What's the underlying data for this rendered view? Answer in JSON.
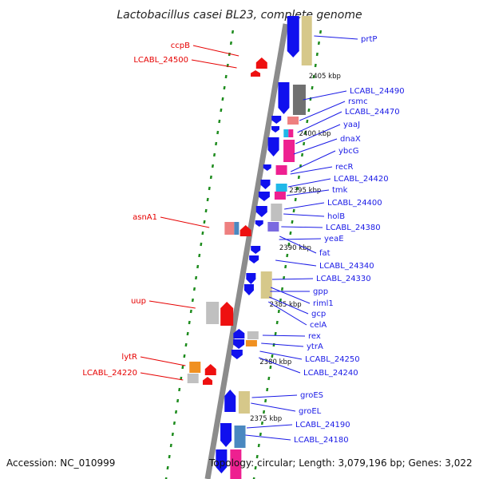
{
  "title": "Lactobacillus casei BL23, complete genome",
  "footer": {
    "accession": "Accession: NC_010999",
    "topology": "Topology: circular; Length: 3,079,196 bp; Genes: 3,022"
  },
  "colors": {
    "backbone": "#8c8c8c",
    "tick": "#1e8c1e",
    "label_right": "#1a1ae6",
    "label_left": "#e60000"
  },
  "kbp_marks": [
    "2405 kbp",
    "2400 kbp",
    "2395 kbp",
    "2390 kbp",
    "2385 kbp",
    "2380 kbp",
    "2375 kbp"
  ],
  "labels_right": [
    "prtP",
    "LCABL_24490",
    "rsmc",
    "LCABL_24470",
    "yaaJ",
    "dnaX",
    "ybcG",
    "recR",
    "LCABL_24420",
    "tmk",
    "LCABL_24400",
    "holB",
    "LCABL_24380",
    "yeaE",
    "fat",
    "LCABL_24340",
    "LCABL_24330",
    "gpp",
    "riml1",
    "gcp",
    "celA",
    "rex",
    "ytrA",
    "LCABL_24250",
    "LCABL_24240",
    "groES",
    "groEL",
    "LCABL_24190",
    "LCABL_24180"
  ],
  "labels_left": [
    "ccpB",
    "LCABL_24500",
    "asnA1",
    "uup",
    "lytR",
    "LCABL_24220"
  ]
}
